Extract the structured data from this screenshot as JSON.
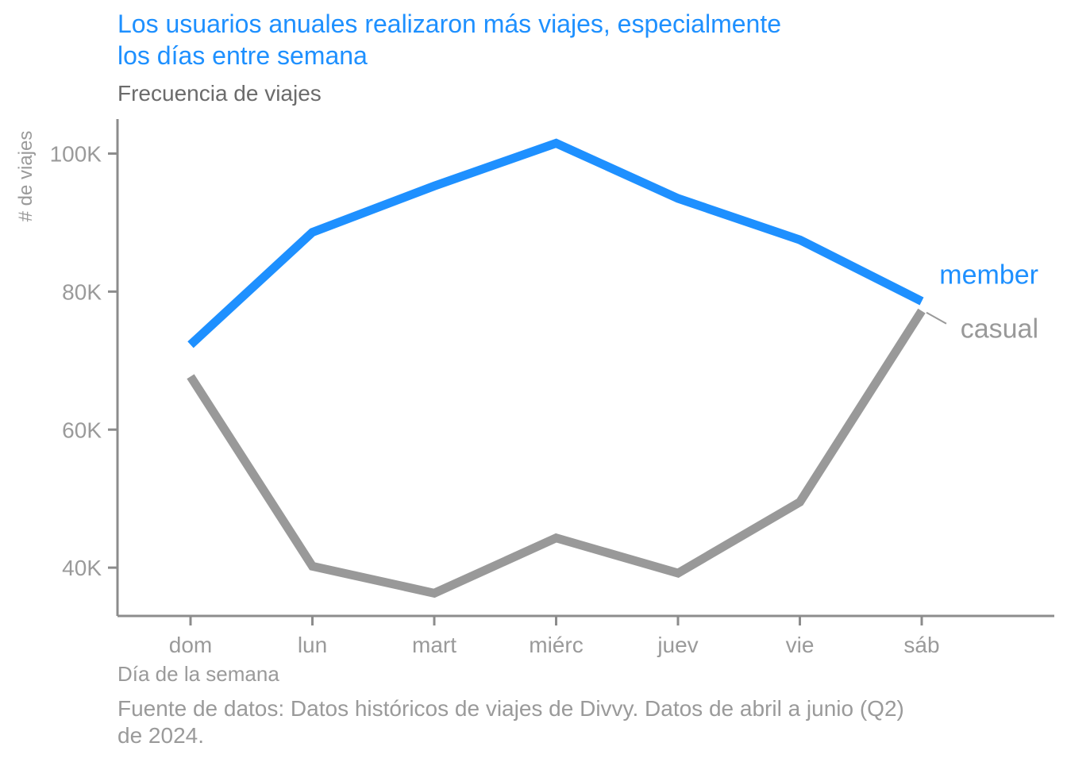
{
  "colors": {
    "member": "#1e90ff",
    "casual": "#999999",
    "axis": "#8c8c8c",
    "tick_text": "#9a9a9a"
  },
  "chart_data": {
    "type": "line",
    "title": "Los usuarios anuales realizaron más viajes, especialmente\n los días entre semana",
    "subtitle": "Frecuencia de viajes",
    "xlabel": "Día de la semana",
    "ylabel": "# de viajes",
    "caption": "Fuente de datos: Datos históricos de viajes de Divvy. Datos de abril a junio (Q2)\n de 2024.",
    "categories": [
      "dom",
      "lun",
      "mart",
      "miérc",
      "juev",
      "vie",
      "sáb"
    ],
    "y_ticks": [
      40000,
      60000,
      80000,
      100000
    ],
    "y_tick_labels": [
      "40K",
      "60K",
      "80K",
      "100K"
    ],
    "ylim": [
      33000,
      105000
    ],
    "grid": false,
    "legend": "direct labels at right end of lines",
    "series": [
      {
        "name": "member",
        "values": [
          72300,
          88600,
          95300,
          101500,
          93500,
          87500,
          78600
        ]
      },
      {
        "name": "casual",
        "values": [
          67700,
          40200,
          36300,
          44300,
          39200,
          49500,
          77200
        ]
      }
    ]
  }
}
